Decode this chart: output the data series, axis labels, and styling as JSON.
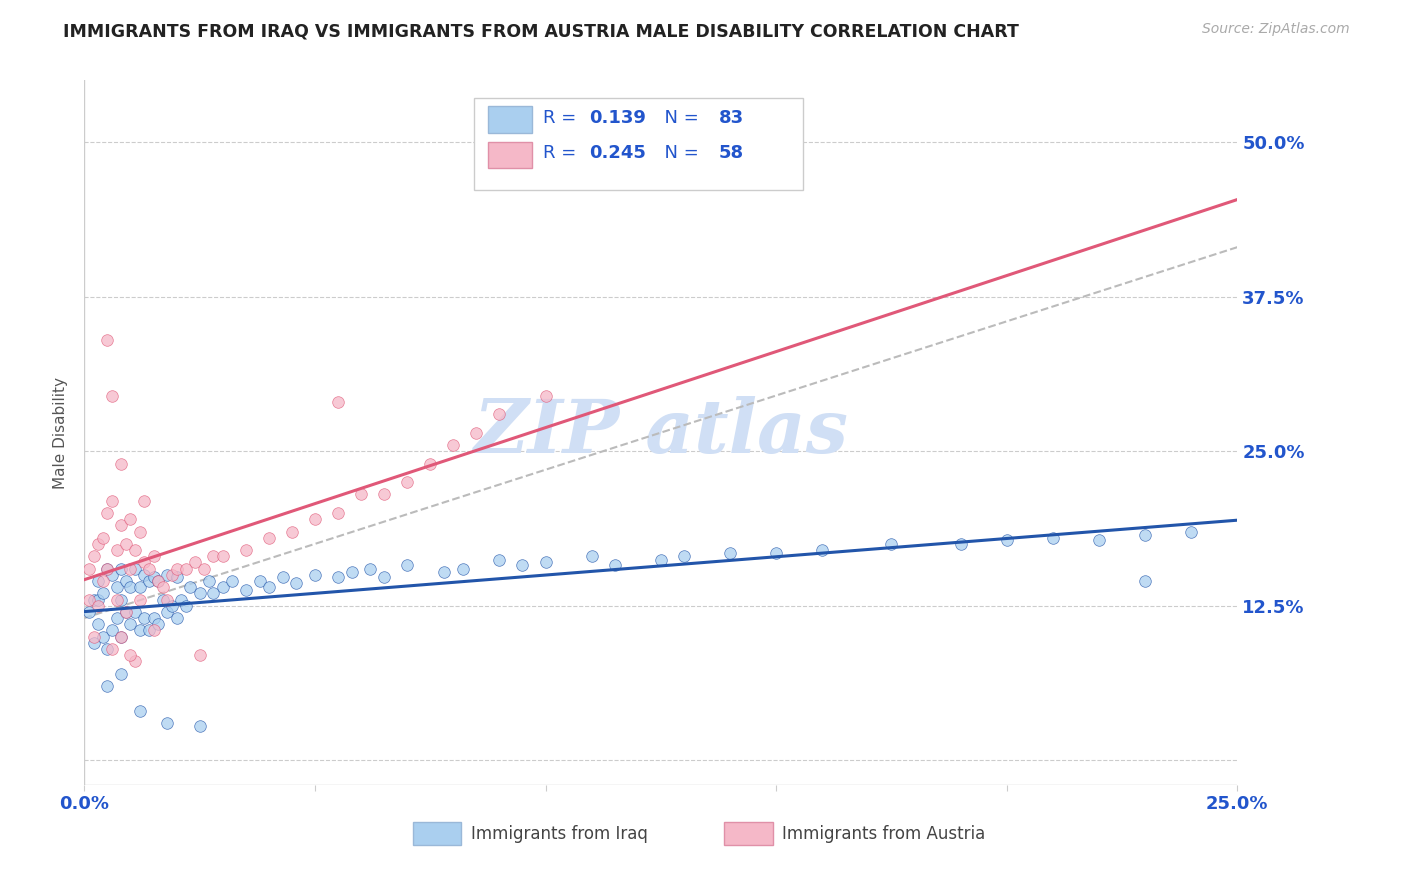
{
  "title": "IMMIGRANTS FROM IRAQ VS IMMIGRANTS FROM AUSTRIA MALE DISABILITY CORRELATION CHART",
  "source": "Source: ZipAtlas.com",
  "ylabel": "Male Disability",
  "legend_iraq_label": "Immigrants from Iraq",
  "legend_austria_label": "Immigrants from Austria",
  "R_iraq": 0.139,
  "N_iraq": 83,
  "R_austria": 0.245,
  "N_austria": 58,
  "iraq_color": "#aacfef",
  "austria_color": "#f5b8c8",
  "iraq_line_color": "#2255aa",
  "austria_line_color": "#e05878",
  "background_color": "#ffffff",
  "xlim": [
    0.0,
    0.25
  ],
  "ylim": [
    -0.02,
    0.55
  ],
  "yticks": [
    0.0,
    0.125,
    0.25,
    0.375,
    0.5
  ],
  "ytick_labels": [
    "",
    "12.5%",
    "25.0%",
    "37.5%",
    "50.0%"
  ],
  "xticks": [
    0.0,
    0.05,
    0.1,
    0.15,
    0.2,
    0.25
  ],
  "xtick_labels": [
    "0.0%",
    "",
    "",
    "",
    "",
    "25.0%"
  ],
  "tick_label_color": "#2255cc",
  "legend_text_color": "#2255cc",
  "watermark_color": "#d0dff5",
  "iraq_x": [
    0.001,
    0.002,
    0.002,
    0.003,
    0.003,
    0.003,
    0.004,
    0.004,
    0.005,
    0.005,
    0.006,
    0.006,
    0.007,
    0.007,
    0.008,
    0.008,
    0.008,
    0.009,
    0.009,
    0.01,
    0.01,
    0.011,
    0.011,
    0.012,
    0.012,
    0.013,
    0.013,
    0.014,
    0.014,
    0.015,
    0.015,
    0.016,
    0.016,
    0.017,
    0.018,
    0.018,
    0.019,
    0.02,
    0.02,
    0.021,
    0.022,
    0.023,
    0.025,
    0.027,
    0.028,
    0.03,
    0.032,
    0.035,
    0.038,
    0.04,
    0.043,
    0.046,
    0.05,
    0.055,
    0.058,
    0.062,
    0.065,
    0.07,
    0.078,
    0.082,
    0.09,
    0.095,
    0.1,
    0.11,
    0.115,
    0.125,
    0.13,
    0.14,
    0.15,
    0.16,
    0.175,
    0.19,
    0.2,
    0.21,
    0.22,
    0.23,
    0.24,
    0.005,
    0.008,
    0.012,
    0.018,
    0.025,
    0.23
  ],
  "iraq_y": [
    0.12,
    0.095,
    0.13,
    0.11,
    0.13,
    0.145,
    0.1,
    0.135,
    0.09,
    0.155,
    0.105,
    0.15,
    0.115,
    0.14,
    0.1,
    0.13,
    0.155,
    0.12,
    0.145,
    0.11,
    0.14,
    0.12,
    0.155,
    0.105,
    0.14,
    0.115,
    0.15,
    0.105,
    0.145,
    0.115,
    0.148,
    0.11,
    0.145,
    0.13,
    0.12,
    0.15,
    0.125,
    0.115,
    0.148,
    0.13,
    0.125,
    0.14,
    0.135,
    0.145,
    0.135,
    0.14,
    0.145,
    0.138,
    0.145,
    0.14,
    0.148,
    0.143,
    0.15,
    0.148,
    0.152,
    0.155,
    0.148,
    0.158,
    0.152,
    0.155,
    0.162,
    0.158,
    0.16,
    0.165,
    0.158,
    0.162,
    0.165,
    0.168,
    0.168,
    0.17,
    0.175,
    0.175,
    0.178,
    0.18,
    0.178,
    0.182,
    0.185,
    0.06,
    0.07,
    0.04,
    0.03,
    0.028,
    0.145
  ],
  "austria_x": [
    0.001,
    0.001,
    0.002,
    0.002,
    0.003,
    0.003,
    0.004,
    0.004,
    0.005,
    0.005,
    0.006,
    0.006,
    0.007,
    0.007,
    0.008,
    0.008,
    0.009,
    0.009,
    0.01,
    0.01,
    0.011,
    0.011,
    0.012,
    0.012,
    0.013,
    0.013,
    0.014,
    0.015,
    0.016,
    0.017,
    0.018,
    0.019,
    0.02,
    0.022,
    0.024,
    0.026,
    0.028,
    0.03,
    0.035,
    0.04,
    0.045,
    0.05,
    0.055,
    0.06,
    0.065,
    0.07,
    0.075,
    0.08,
    0.085,
    0.09,
    0.1,
    0.055,
    0.01,
    0.015,
    0.025,
    0.008,
    0.006,
    0.005
  ],
  "austria_y": [
    0.13,
    0.155,
    0.1,
    0.165,
    0.125,
    0.175,
    0.145,
    0.18,
    0.155,
    0.2,
    0.09,
    0.21,
    0.13,
    0.17,
    0.1,
    0.19,
    0.12,
    0.175,
    0.155,
    0.195,
    0.08,
    0.17,
    0.13,
    0.185,
    0.16,
    0.21,
    0.155,
    0.165,
    0.145,
    0.14,
    0.13,
    0.15,
    0.155,
    0.155,
    0.16,
    0.155,
    0.165,
    0.165,
    0.17,
    0.18,
    0.185,
    0.195,
    0.2,
    0.215,
    0.215,
    0.225,
    0.24,
    0.255,
    0.265,
    0.28,
    0.295,
    0.29,
    0.085,
    0.105,
    0.085,
    0.24,
    0.295,
    0.34
  ]
}
